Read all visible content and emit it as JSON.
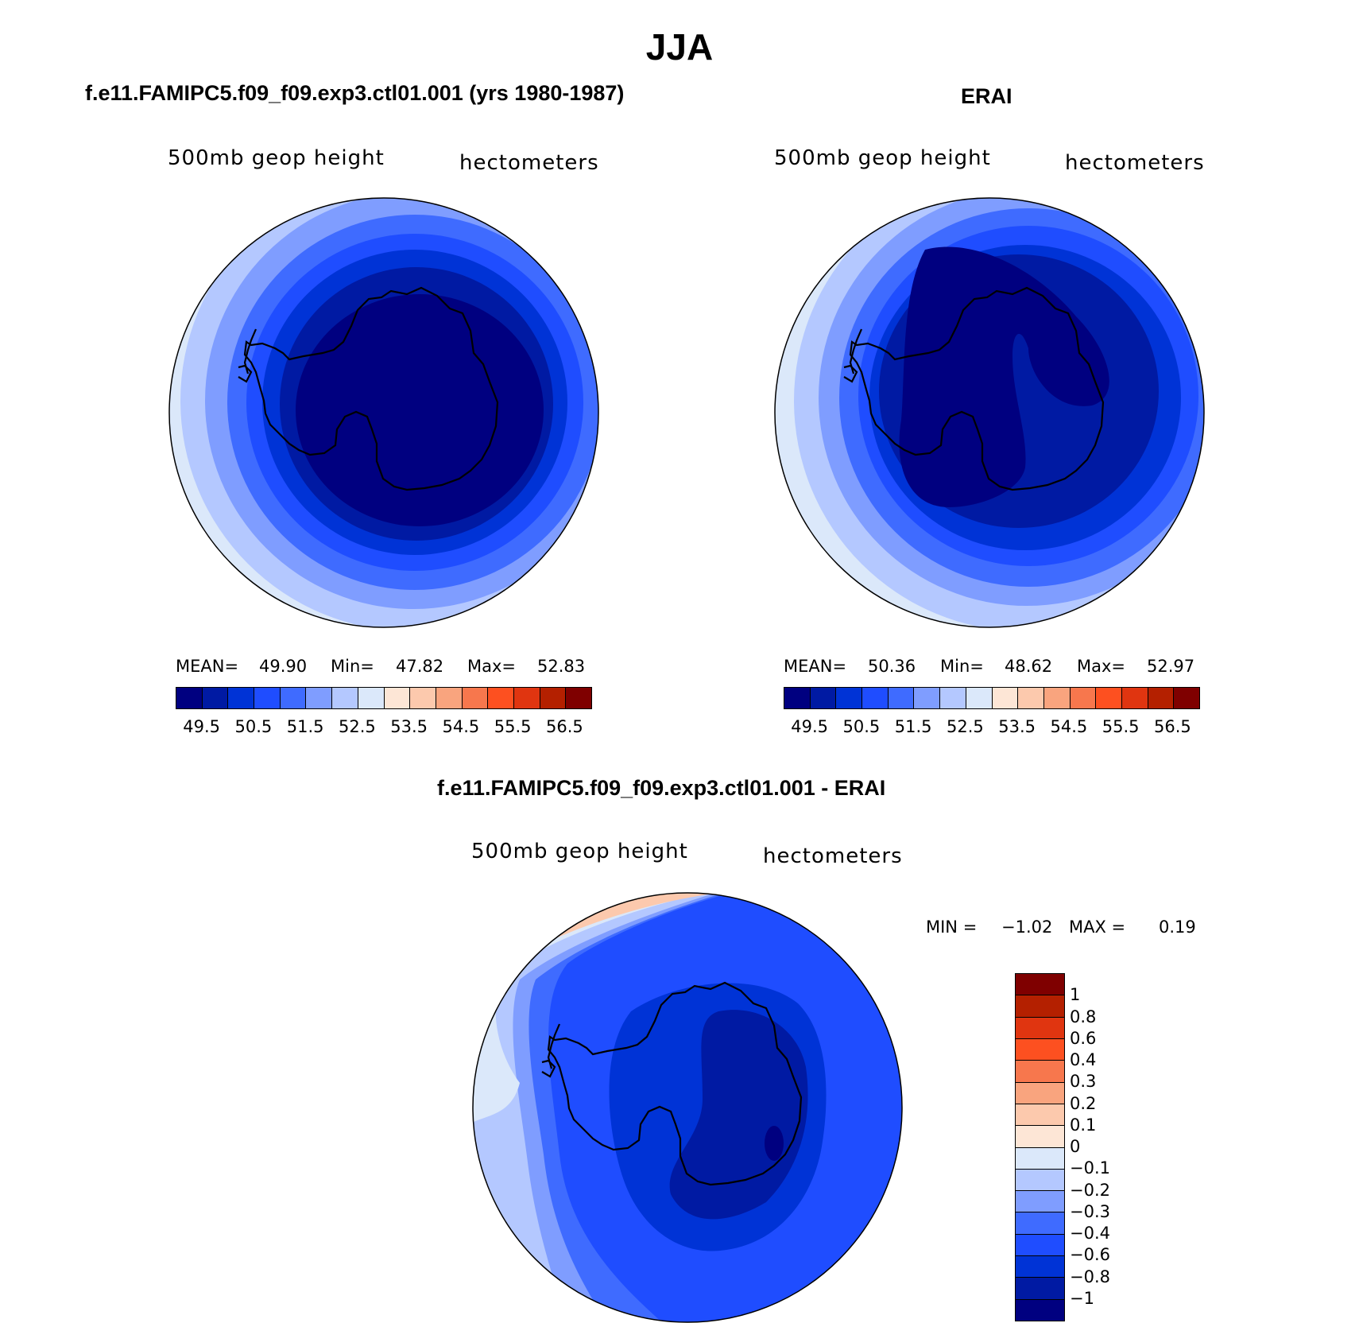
{
  "main_title": "JJA",
  "colors": {
    "seq": [
      "#000080",
      "#001aa3",
      "#0033d6",
      "#1f4dff",
      "#3f6bff",
      "#7f9dff",
      "#b4c8ff",
      "#dbe8fa",
      "#fde6d6",
      "#fcc9ad",
      "#f9a47e",
      "#f7774d",
      "#fd5020",
      "#e03510",
      "#b42000",
      "#7f0000"
    ]
  },
  "panels": [
    {
      "title": "f.e11.FAMIPC5.f09_f09.exp3.ctl01.001 (yrs 1980-1987)",
      "field": "500mb geop height",
      "units": "hectometers",
      "stats": {
        "mean_label": "MEAN=",
        "mean": "49.90",
        "min_label": "Min=",
        "min": "47.82",
        "max_label": "Max=",
        "max": "52.83"
      },
      "cbar_labels": [
        "49.5",
        "50.5",
        "51.5",
        "52.5",
        "53.5",
        "54.5",
        "55.5",
        "56.5"
      ]
    },
    {
      "title": "ERAI",
      "field": "500mb geop height",
      "units": "hectometers",
      "stats": {
        "mean_label": "MEAN=",
        "mean": "50.36",
        "min_label": "Min=",
        "min": "48.62",
        "max_label": "Max=",
        "max": "52.97"
      },
      "cbar_labels": [
        "49.5",
        "50.5",
        "51.5",
        "52.5",
        "53.5",
        "54.5",
        "55.5",
        "56.5"
      ]
    },
    {
      "title": "f.e11.FAMIPC5.f09_f09.exp3.ctl01.001 - ERAI",
      "field": "500mb geop height",
      "units": "hectometers",
      "stats": {
        "min_label": "MIN =",
        "min": "−1.02",
        "max_label": "MAX =",
        "max": "0.19"
      },
      "cbar_labels": [
        "1",
        "0.8",
        "0.6",
        "0.4",
        "0.3",
        "0.2",
        "0.1",
        "0",
        "−0.1",
        "−0.2",
        "−0.3",
        "−0.4",
        "−0.6",
        "−0.8",
        "−1"
      ]
    }
  ]
}
